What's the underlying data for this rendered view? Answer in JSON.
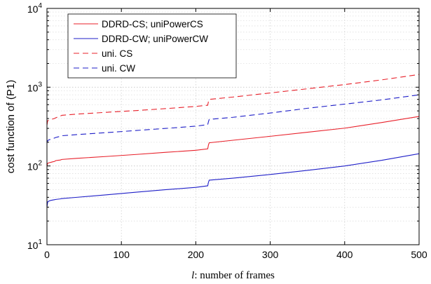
{
  "chart_data": {
    "type": "line",
    "xlabel": {
      "symbol": "l",
      "text": ": number of frames"
    },
    "ylabel": "cost function of (P1)",
    "xlim": [
      0,
      500
    ],
    "ylim": [
      10,
      10000
    ],
    "yscale": "log",
    "grid": true,
    "legend_position": "top-left",
    "xticks": [
      0,
      100,
      200,
      300,
      400,
      500
    ],
    "xtick_labels": [
      "0",
      "100",
      "200",
      "300",
      "400",
      "500"
    ],
    "yticks": [
      10,
      100,
      1000,
      10000
    ],
    "ytick_labels": [
      {
        "base": "10",
        "exp": "1"
      },
      {
        "base": "10",
        "exp": "2"
      },
      {
        "base": "10",
        "exp": "3"
      },
      {
        "base": "10",
        "exp": "4"
      }
    ],
    "series": [
      {
        "name": "DDRD-CS; uniPowerCS",
        "color": "#e8202a",
        "style": "solid",
        "x": [
          0,
          1,
          3,
          5,
          8,
          10,
          12,
          15,
          18,
          20,
          40,
          80,
          120,
          160,
          200,
          216,
          217,
          218,
          250,
          300,
          350,
          400,
          450,
          500
        ],
        "y": [
          100,
          108,
          110,
          111,
          113,
          114,
          117,
          118,
          119,
          121,
          125,
          132,
          140,
          149,
          158,
          165,
          185,
          197,
          212,
          238,
          268,
          302,
          356,
          425
        ]
      },
      {
        "name": "DDRD-CW; uniPowerCW",
        "color": "#1f1fc8",
        "style": "solid",
        "x": [
          0,
          1,
          3,
          5,
          8,
          10,
          12,
          15,
          18,
          20,
          40,
          80,
          120,
          160,
          200,
          216,
          217,
          218,
          250,
          300,
          350,
          400,
          450,
          500
        ],
        "y": [
          30,
          35,
          36,
          36.5,
          37,
          37.3,
          37.6,
          37.9,
          38.2,
          38.5,
          40,
          43,
          46.5,
          50,
          53.5,
          56,
          62,
          66,
          70,
          78,
          88,
          100,
          118,
          143
        ]
      },
      {
        "name": "uni. CS",
        "color": "#e8202a",
        "style": "dashed",
        "x": [
          0,
          1,
          3,
          5,
          8,
          10,
          12,
          15,
          18,
          20,
          40,
          80,
          120,
          160,
          200,
          216,
          217,
          218,
          250,
          300,
          350,
          400,
          450,
          500
        ],
        "y": [
          330,
          375,
          385,
          390,
          395,
          400,
          410,
          420,
          430,
          440,
          455,
          480,
          505,
          535,
          570,
          590,
          660,
          700,
          750,
          845,
          955,
          1080,
          1240,
          1450
        ]
      },
      {
        "name": "uni. CW",
        "color": "#1f1fc8",
        "style": "dashed",
        "x": [
          0,
          1,
          3,
          5,
          8,
          10,
          12,
          15,
          18,
          20,
          40,
          80,
          120,
          160,
          200,
          216,
          217,
          218,
          250,
          300,
          350,
          400,
          450,
          500
        ],
        "y": [
          195,
          210,
          215,
          218,
          222,
          226,
          230,
          234,
          238,
          242,
          250,
          265,
          282,
          300,
          320,
          335,
          365,
          390,
          415,
          470,
          540,
          610,
          690,
          800
        ]
      }
    ]
  }
}
